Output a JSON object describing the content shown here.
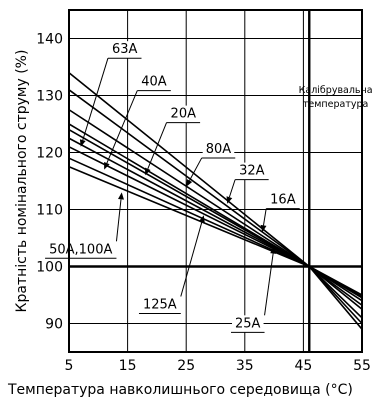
{
  "chart_data": {
    "type": "line",
    "xlabel": "Температура навколишнього середовища (°C)",
    "ylabel": "Кратність номінального струму (%)",
    "xlim": [
      5,
      55
    ],
    "ylim": [
      85,
      145
    ],
    "x_ticks": [
      "5",
      "15",
      "25",
      "35",
      "45",
      "55"
    ],
    "y_ticks": [
      "90",
      "100",
      "110",
      "120",
      "130",
      "140"
    ],
    "grid": true,
    "reference": {
      "x": 46,
      "y": 100,
      "label_line1": "Калібрувальна",
      "label_line2": "температура"
    },
    "series": [
      {
        "name": "63A",
        "x": [
          5,
          46,
          55
        ],
        "y": [
          134,
          100,
          92.5
        ]
      },
      {
        "name": "40A",
        "x": [
          5,
          46,
          55
        ],
        "y": [
          131,
          100,
          93.2
        ]
      },
      {
        "name": "20A",
        "x": [
          5,
          46,
          55
        ],
        "y": [
          127.5,
          100,
          94
        ]
      },
      {
        "name": "80A",
        "x": [
          5,
          46,
          55
        ],
        "y": [
          125,
          100,
          94.5
        ]
      },
      {
        "name": "32A",
        "x": [
          5,
          46,
          55
        ],
        "y": [
          124,
          100,
          94.7
        ]
      },
      {
        "name": "16A",
        "x": [
          5,
          46,
          55
        ],
        "y": [
          122.5,
          100,
          95
        ]
      },
      {
        "name": "50A,100A",
        "x": [
          5,
          46,
          55
        ],
        "y": [
          121,
          100,
          91
        ]
      },
      {
        "name": "125A",
        "x": [
          5,
          46,
          55
        ],
        "y": [
          119,
          100,
          90
        ]
      },
      {
        "name": "25A",
        "x": [
          5,
          46,
          55
        ],
        "y": [
          117.5,
          100,
          89
        ]
      }
    ],
    "label_pointers": [
      {
        "series": "63A",
        "text_x": 14.5,
        "text_y": 138.3,
        "target_x": 7,
        "target_y": 121
      },
      {
        "series": "40A",
        "text_x": 19.5,
        "text_y": 132.6,
        "target_x": 11,
        "target_y": 117
      },
      {
        "series": "20A",
        "text_x": 24.5,
        "text_y": 127,
        "target_x": 18,
        "target_y": 116
      },
      {
        "series": "80A",
        "text_x": 30.5,
        "text_y": 120.8,
        "target_x": 25,
        "target_y": 114
      },
      {
        "series": "32A",
        "text_x": 36.2,
        "text_y": 117,
        "target_x": 32,
        "target_y": 111
      },
      {
        "series": "16A",
        "text_x": 41.5,
        "text_y": 111.9,
        "target_x": 38,
        "target_y": 106
      },
      {
        "series": "50A,100A",
        "text_x": 7,
        "text_y": 103.2,
        "target_x": 14,
        "target_y": 113
      },
      {
        "series": "125A",
        "text_x": 20.5,
        "text_y": 93.5,
        "target_x": 28,
        "target_y": 109
      },
      {
        "series": "25A",
        "text_x": 35.5,
        "text_y": 90.2,
        "target_x": 40,
        "target_y": 103.5
      }
    ]
  }
}
